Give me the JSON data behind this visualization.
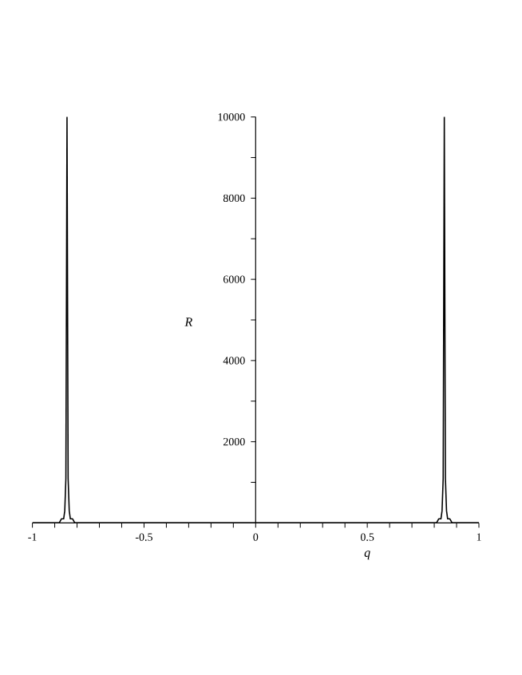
{
  "chart_data": {
    "type": "line",
    "xlabel": "q",
    "ylabel": "R",
    "x": [
      -1,
      -0.95,
      -0.9,
      -0.88,
      -0.87,
      -0.86,
      -0.855,
      -0.85,
      -0.845,
      -0.84,
      -0.835,
      -0.83,
      -0.825,
      -0.82,
      -0.81,
      -0.8,
      -0.78,
      -0.75,
      -0.7,
      -0.6,
      -0.4,
      -0.2,
      0,
      0.2,
      0.4,
      0.6,
      0.7,
      0.75,
      0.78,
      0.8,
      0.81,
      0.82,
      0.825,
      0.83,
      0.835,
      0.84,
      0.845,
      0.85,
      0.855,
      0.86,
      0.87,
      0.88,
      0.9,
      0.95,
      1
    ],
    "series": [
      {
        "color": "#000000",
        "values": [
          0,
          0,
          0,
          0,
          100,
          100,
          300,
          1100,
          10000,
          1100,
          300,
          100,
          100,
          100,
          0,
          0,
          0,
          0,
          0,
          0,
          0,
          0,
          0,
          0,
          0,
          0,
          0,
          0,
          0,
          0,
          0,
          100,
          100,
          100,
          300,
          1100,
          10000,
          1100,
          300,
          100,
          100,
          0,
          0,
          0,
          0
        ]
      }
    ],
    "xlim": [
      -1,
      1
    ],
    "ylim": [
      0,
      10000
    ],
    "xticks": [
      -1,
      {
        "value": -0.9,
        "label": null
      },
      {
        "value": -0.8,
        "label": null
      },
      {
        "value": -0.7,
        "label": null
      },
      {
        "value": -0.6,
        "label": null
      },
      -0.5,
      {
        "value": -0.4,
        "label": null
      },
      {
        "value": -0.3,
        "label": null
      },
      {
        "value": -0.2,
        "label": null
      },
      {
        "value": -0.1,
        "label": null
      },
      0,
      {
        "value": 0.1,
        "label": null
      },
      {
        "value": 0.2,
        "label": null
      },
      {
        "value": 0.3,
        "label": null
      },
      {
        "value": 0.4,
        "label": null
      },
      0.5,
      {
        "value": 0.6,
        "label": null
      },
      {
        "value": 0.7,
        "label": null
      },
      {
        "value": 0.8,
        "label": null
      },
      {
        "value": 0.9,
        "label": null
      },
      1
    ],
    "yticks": [
      {
        "value": 1000,
        "label": null
      },
      2000,
      {
        "value": 3000,
        "label": null
      },
      4000,
      {
        "value": 5000,
        "label": null
      },
      6000,
      {
        "value": 7000,
        "label": null
      },
      8000,
      {
        "value": 9000,
        "label": null
      },
      10000
    ],
    "grid": false,
    "marker": "none",
    "line_style": "solid"
  }
}
